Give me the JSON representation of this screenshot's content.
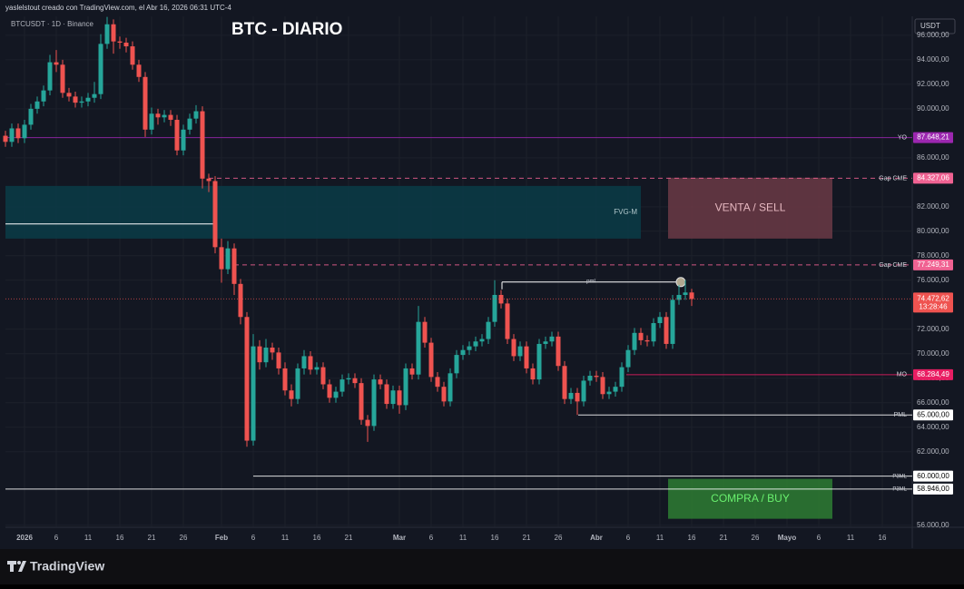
{
  "header": {
    "credit": "yaslelstout creado con TradingView.com, el Abr 16, 2026 06:31 UTC-4",
    "symbol": "BTCUSDT · 1D · Binance",
    "currency": "USDT",
    "brand": "TradingView"
  },
  "chart_data": {
    "type": "candlestick",
    "title": "BTC - DIARIO",
    "candles": {
      "open": [
        87800,
        87300,
        88400,
        87600,
        88700,
        90000,
        90600,
        91500,
        93800,
        93600,
        91300,
        91000,
        90500,
        90600,
        90900,
        91200,
        95300,
        96900,
        95500,
        95400,
        95100,
        93600,
        92600,
        88300,
        89600,
        89300,
        89500,
        89100,
        86600,
        88300,
        89200,
        89800,
        84300,
        84100,
        78700,
        76900,
        78600,
        75700,
        73000,
        62900,
        70600,
        69300,
        70500,
        70100,
        68800,
        67000,
        66300,
        68800,
        69800,
        68700,
        68900,
        67500,
        66400,
        66900,
        67900,
        68000,
        67600,
        64600,
        64100,
        67900,
        67500,
        65900,
        67000,
        65800,
        68800,
        68300,
        72600,
        70900,
        68100,
        67300,
        66100,
        68400,
        69900,
        70300,
        70600,
        71000,
        71200,
        72600,
        74800,
        74100,
        71200,
        69800,
        70600,
        68800,
        67900,
        70800,
        71000,
        71400,
        69000,
        66300,
        66800,
        66100,
        67800,
        68200,
        68100,
        66700,
        66900,
        67300,
        68900,
        70300,
        71700,
        71100,
        71000,
        72500,
        73000,
        70800,
        74400,
        74800,
        75000
      ],
      "high": [
        88200,
        88800,
        88800,
        89100,
        90400,
        91000,
        91900,
        94400,
        94800,
        94000,
        91700,
        91400,
        91000,
        91300,
        92200,
        96100,
        97500,
        97300,
        95900,
        95800,
        95500,
        94000,
        93000,
        90100,
        90000,
        89900,
        89900,
        89500,
        88700,
        89600,
        90300,
        90200,
        84700,
        84500,
        79400,
        79200,
        79000,
        76100,
        73400,
        71600,
        71100,
        71200,
        70900,
        70500,
        69300,
        67500,
        69200,
        70300,
        70200,
        69300,
        69300,
        67900,
        67300,
        68300,
        68400,
        68400,
        68000,
        65000,
        68300,
        68300,
        67900,
        67400,
        67400,
        69200,
        69200,
        73900,
        73000,
        71300,
        68500,
        67700,
        68800,
        70300,
        70700,
        71000,
        71400,
        71600,
        73000,
        76000,
        75200,
        74500,
        71600,
        71000,
        71000,
        69200,
        71200,
        71400,
        71800,
        71800,
        69400,
        67200,
        67200,
        68200,
        68600,
        68600,
        68500,
        67300,
        67700,
        69300,
        70700,
        72100,
        72100,
        71500,
        72900,
        73400,
        73400,
        74800,
        75600,
        76000,
        75300
      ],
      "low": [
        86900,
        86900,
        87200,
        87200,
        88300,
        89600,
        90200,
        91100,
        93000,
        90900,
        90600,
        90100,
        90100,
        90200,
        90500,
        90800,
        94900,
        94500,
        94900,
        94600,
        93200,
        92200,
        87700,
        87900,
        88700,
        88900,
        88600,
        86200,
        86200,
        87900,
        88800,
        83500,
        83200,
        78200,
        75800,
        76500,
        74800,
        72400,
        62400,
        62500,
        68700,
        68900,
        69500,
        68300,
        66600,
        65700,
        65900,
        68300,
        68300,
        68300,
        67100,
        66000,
        66000,
        66500,
        67500,
        67200,
        64200,
        62800,
        63700,
        67100,
        65500,
        65500,
        65100,
        65400,
        67900,
        67900,
        70500,
        67700,
        66900,
        65700,
        65700,
        68000,
        69500,
        69900,
        70200,
        70600,
        70800,
        72200,
        73700,
        70800,
        69400,
        69400,
        68400,
        67500,
        67500,
        70400,
        70600,
        68600,
        65900,
        65900,
        65000,
        65700,
        67400,
        67700,
        66300,
        66300,
        66500,
        66900,
        68500,
        69900,
        70700,
        70600,
        70600,
        72100,
        70400,
        70400,
        74000,
        74400,
        73900
      ],
      "close": [
        87300,
        88400,
        87600,
        88700,
        90000,
        90600,
        91500,
        93800,
        93600,
        91300,
        91000,
        90500,
        90600,
        90900,
        91200,
        95300,
        96900,
        95500,
        95400,
        95100,
        93600,
        92600,
        88300,
        89600,
        89300,
        89500,
        89100,
        86600,
        88300,
        89200,
        89800,
        84300,
        84100,
        78700,
        76900,
        78600,
        75700,
        73000,
        62900,
        70600,
        69300,
        70500,
        70100,
        68800,
        67000,
        66300,
        68800,
        69800,
        68700,
        68900,
        67500,
        66400,
        66900,
        67900,
        68000,
        67600,
        64600,
        64100,
        67900,
        67500,
        65900,
        67000,
        65800,
        68800,
        68300,
        72600,
        70900,
        68100,
        67300,
        66100,
        68400,
        69900,
        70300,
        70600,
        71000,
        71200,
        72600,
        74800,
        74100,
        71200,
        69800,
        70600,
        68800,
        67900,
        70800,
        71000,
        71400,
        69000,
        66300,
        66800,
        66100,
        67800,
        68200,
        68100,
        66700,
        66900,
        67300,
        68900,
        70300,
        71700,
        71100,
        71000,
        72500,
        73000,
        70800,
        74400,
        74800,
        75000,
        74472.62
      ]
    },
    "up_color": "#26a69a",
    "down_color": "#ef5350",
    "last_price_label": "74.472,62",
    "countdown": "13:28:46",
    "ylim": [
      55900,
      97550
    ],
    "yticks": [
      {
        "value": 96000,
        "label": "96.000,00"
      },
      {
        "value": 94000,
        "label": "94.000,00"
      },
      {
        "value": 92000,
        "label": "92.000,00"
      },
      {
        "value": 90000,
        "label": "90.000,00"
      },
      {
        "value": 86000,
        "label": "86.000,00"
      },
      {
        "value": 82000,
        "label": "82.000,00"
      },
      {
        "value": 80000,
        "label": "80.000,00"
      },
      {
        "value": 78000,
        "label": "78.000,00"
      },
      {
        "value": 76000,
        "label": "76.000,00"
      },
      {
        "value": 72000,
        "label": "72.000,00"
      },
      {
        "value": 70000,
        "label": "70.000,00"
      },
      {
        "value": 68000,
        "label": "68.000,00"
      },
      {
        "value": 66000,
        "label": "66.000,00"
      },
      {
        "value": 64000,
        "label": "64.000,00"
      },
      {
        "value": 62000,
        "label": "62.000,00"
      },
      {
        "value": 56000,
        "label": "56.000,00"
      }
    ],
    "xticks": [
      {
        "value": 3,
        "label": "2026"
      },
      {
        "value": 8,
        "label": "6"
      },
      {
        "value": 13,
        "label": "11"
      },
      {
        "value": 18,
        "label": "16"
      },
      {
        "value": 23,
        "label": "21"
      },
      {
        "value": 28,
        "label": "26"
      },
      {
        "value": 34,
        "label": "Feb"
      },
      {
        "value": 39,
        "label": "6"
      },
      {
        "value": 44,
        "label": "11"
      },
      {
        "value": 49,
        "label": "16"
      },
      {
        "value": 54,
        "label": "21"
      },
      {
        "value": 62,
        "label": "Mar"
      },
      {
        "value": 67,
        "label": "6"
      },
      {
        "value": 72,
        "label": "11"
      },
      {
        "value": 77,
        "label": "16"
      },
      {
        "value": 82,
        "label": "21"
      },
      {
        "value": 87,
        "label": "26"
      },
      {
        "value": 93,
        "label": "Abr"
      },
      {
        "value": 98,
        "label": "6"
      },
      {
        "value": 103,
        "label": "11"
      },
      {
        "value": 108,
        "label": "16"
      },
      {
        "value": 113,
        "label": "21"
      },
      {
        "value": 118,
        "label": "26"
      },
      {
        "value": 123,
        "label": "Mayo"
      },
      {
        "value": 128,
        "label": "6"
      },
      {
        "value": 133,
        "label": "11"
      },
      {
        "value": 138,
        "label": "16"
      }
    ],
    "grid": true,
    "levels": [
      {
        "label": "YO",
        "value": 87648.21,
        "value_label": "87.648,21",
        "color": "#9c27b0",
        "style": "solid"
      },
      {
        "label": "Gap CME",
        "value": 84327.06,
        "value_label": "84.327,06",
        "color": "#f06292",
        "style": "dashed"
      },
      {
        "label": "Gap CME",
        "value": 77249.31,
        "value_label": "77.249,31",
        "color": "#f06292",
        "style": "dashed"
      },
      {
        "label": "MO",
        "value": 68284.49,
        "value_label": "68.284,49",
        "color": "#e91e63",
        "style": "solid"
      },
      {
        "label": "PML",
        "value": 65000,
        "value_label": "65.000,00",
        "color": "#ffffff",
        "style": "solid"
      },
      {
        "label": "P3ML",
        "value": 60000,
        "value_label": "60.000,00",
        "color": "#ffffff",
        "style": "solid"
      },
      {
        "label": "P3ML",
        "value": 58946,
        "value_label": "58.946,00",
        "color": "#ffffff",
        "style": "solid"
      }
    ],
    "zones": [
      {
        "label": "FVG-M",
        "top": 83700,
        "bottom": 79400,
        "color": "#0b3a45",
        "text_color": "#b2c8cc"
      },
      {
        "label": "VENTA / SELL",
        "top": 84370,
        "bottom": 79400,
        "color": "#6b3a45",
        "text_color": "#e6b8c0"
      },
      {
        "label": "COMPRA / BUY",
        "top": 59780,
        "bottom": 56520,
        "color": "#2e7d32",
        "text_color": "#69f06e"
      }
    ],
    "fvg_line": 80600,
    "pml": {
      "label": "pml",
      "value": 75850
    }
  }
}
